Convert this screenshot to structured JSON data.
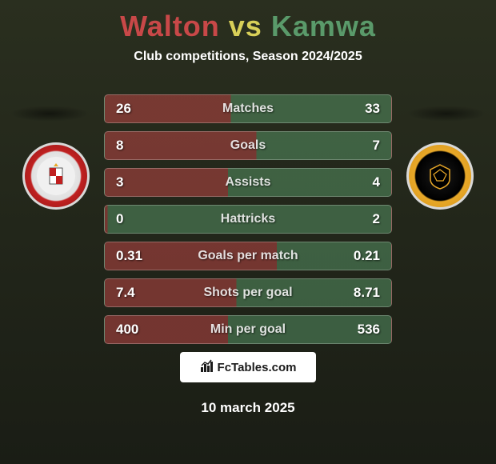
{
  "title": {
    "player1": "Walton",
    "vs": "vs",
    "player2": "Kamwa"
  },
  "subtitle": "Club competitions, Season 2024/2025",
  "colors": {
    "player1": "#c84848",
    "vs": "#d8d058",
    "player2": "#5a9a6a",
    "text": "#ffffff",
    "bg_top": "#2a2f1f",
    "bg_bottom": "#1a1d15"
  },
  "stats": [
    {
      "label": "Matches",
      "val1": "26",
      "val2": "33",
      "split_pct": 44
    },
    {
      "label": "Goals",
      "val1": "8",
      "val2": "7",
      "split_pct": 53
    },
    {
      "label": "Assists",
      "val1": "3",
      "val2": "4",
      "split_pct": 43
    },
    {
      "label": "Hattricks",
      "val1": "0",
      "val2": "2",
      "split_pct": 1
    },
    {
      "label": "Goals per match",
      "val1": "0.31",
      "val2": "0.21",
      "split_pct": 60
    },
    {
      "label": "Shots per goal",
      "val1": "7.4",
      "val2": "8.71",
      "split_pct": 46
    },
    {
      "label": "Min per goal",
      "val1": "400",
      "val2": "536",
      "split_pct": 43
    }
  ],
  "branding": {
    "site": "FcTables.com"
  },
  "date": "10 march 2025",
  "badges": {
    "left_label": "ACCRINGTON STANLEY",
    "right_label": "NEWPORT COUNTY"
  }
}
